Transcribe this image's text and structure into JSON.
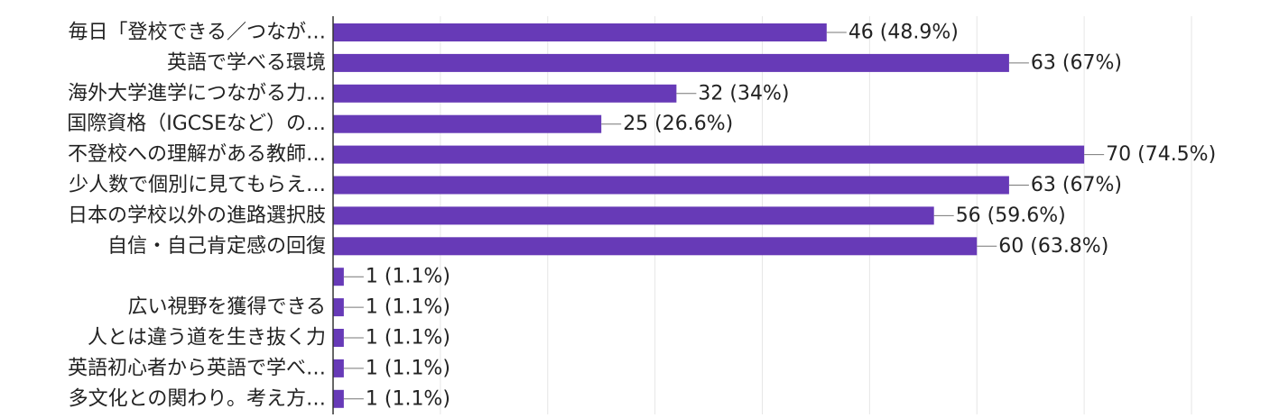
{
  "chart_data": {
    "type": "bar",
    "orientation": "horizontal",
    "categories": [
      "毎日「登校できる／つなが…",
      "英語で学べる環境",
      "海外大学進学につながる力…",
      "国際資格（IGCSEなど）の…",
      "不登校への理解がある教師…",
      "少人数で個別に見てもらえ…",
      "日本の学校以外の進路選択肢",
      "自信・自己肯定感の回復",
      "",
      "広い視野を獲得できる",
      "人とは違う道を生き抜く力",
      "英語初心者から英語で学べ…",
      "多文化との関わり。考え方…"
    ],
    "values": [
      46,
      63,
      32,
      25,
      70,
      63,
      56,
      60,
      1,
      1,
      1,
      1,
      1
    ],
    "labels": [
      "46 (48.9%)",
      "63 (67%)",
      "32 (34%)",
      "25 (26.6%)",
      "70 (74.5%)",
      "63 (67%)",
      "56 (59.6%)",
      "60 (63.8%)",
      "1 (1.1%)",
      "1 (1.1%)",
      "1 (1.1%)",
      "1 (1.1%)",
      "1 (1.1%)"
    ],
    "xlim": [
      0,
      80
    ],
    "grid": true,
    "bar_color": "#673ab7"
  }
}
